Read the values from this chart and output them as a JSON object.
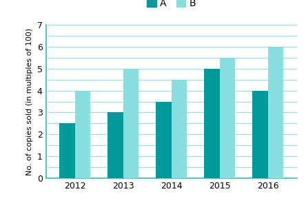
{
  "years": [
    "2012",
    "2013",
    "2014",
    "2015",
    "2016"
  ],
  "A_values": [
    2.5,
    3.0,
    3.5,
    5.0,
    4.0
  ],
  "B_values": [
    4.0,
    5.0,
    4.5,
    5.5,
    6.0
  ],
  "color_A": "#009999",
  "color_B": "#88DDDD",
  "ylabel": "No. of copies sold (in multiples of 100)",
  "ylim": [
    0,
    7
  ],
  "yticks": [
    0,
    1,
    2,
    3,
    4,
    5,
    6,
    7
  ],
  "legend_A": "A",
  "legend_B": "B",
  "bar_width": 0.32,
  "grid_color": "#99DDDD",
  "spine_color": "#33BBBB",
  "background_color": "#FFFFFF",
  "tick_fontsize": 9,
  "ylabel_fontsize": 8
}
